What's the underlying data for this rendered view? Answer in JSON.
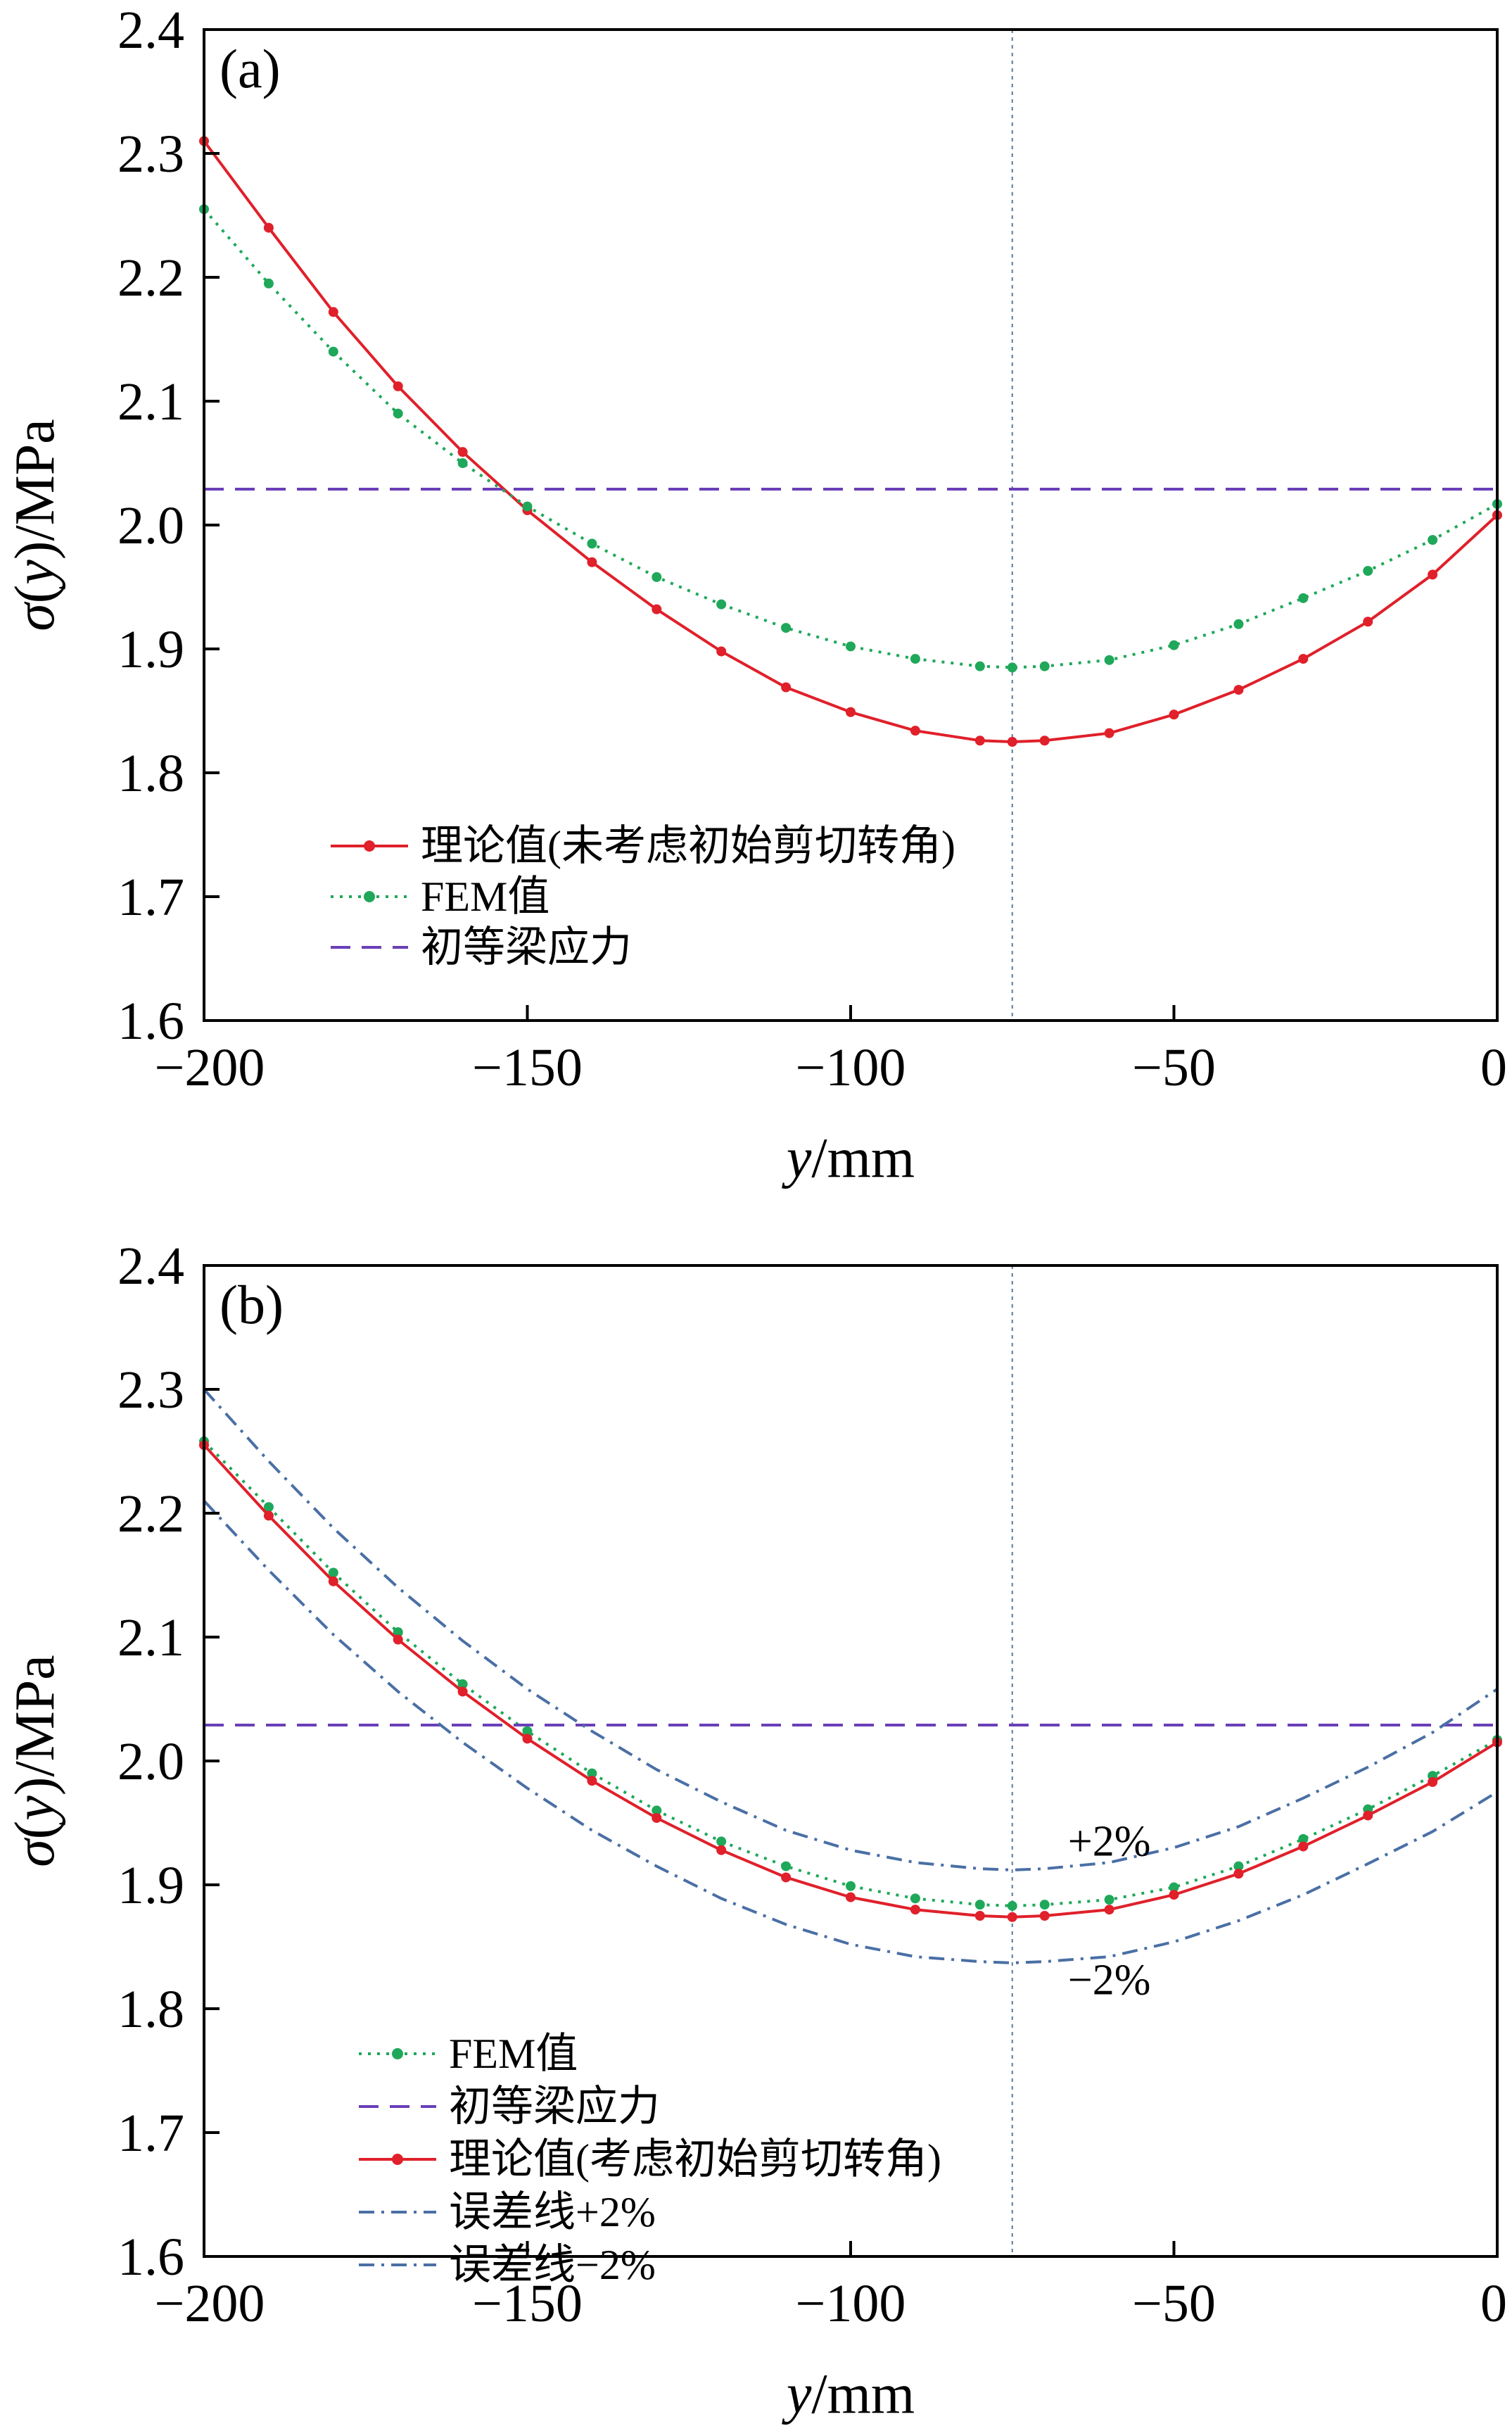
{
  "chart_data": [
    {
      "type": "line",
      "panel_label": "(a)",
      "xlabel_var": "y",
      "xlabel_unit": "/mm",
      "ylabel_prefix": "σ(",
      "ylabel_var": "y",
      "ylabel_suffix": ")/MPa",
      "xlim": [
        -200,
        0
      ],
      "ylim": [
        1.6,
        2.4
      ],
      "x_ticks": [
        -200,
        -150,
        -100,
        -50,
        0
      ],
      "x_tick_labels": [
        "−200",
        "−150",
        "−100",
        "−50",
        "0"
      ],
      "y_ticks": [
        1.6,
        1.7,
        1.8,
        1.9,
        2.0,
        2.1,
        2.2,
        2.3,
        2.4
      ],
      "y_tick_labels": [
        "1.6",
        "1.7",
        "1.8",
        "1.9",
        "2.0",
        "2.1",
        "2.2",
        "2.3",
        "2.4"
      ],
      "grid": false,
      "vline_x": -75,
      "legend_position": "lower-left",
      "series": [
        {
          "name": "理论值(未考虑初始剪切转角)",
          "color": "#e0202a",
          "style": "solid",
          "markers": true,
          "x": [
            -200,
            -190,
            -180,
            -170,
            -160,
            -150,
            -140,
            -130,
            -120,
            -110,
            -100,
            -90,
            -80,
            -75,
            -70,
            -60,
            -50,
            -40,
            -30,
            -20,
            -10,
            0
          ],
          "values": [
            2.31,
            2.24,
            2.172,
            2.112,
            2.059,
            2.012,
            1.97,
            1.932,
            1.898,
            1.869,
            1.849,
            1.834,
            1.826,
            1.825,
            1.826,
            1.832,
            1.847,
            1.867,
            1.892,
            1.922,
            1.96,
            2.008
          ]
        },
        {
          "name": "FEM值",
          "color": "#1fa85a",
          "style": "dotted",
          "markers": true,
          "x": [
            -200,
            -190,
            -180,
            -170,
            -160,
            -150,
            -140,
            -130,
            -120,
            -110,
            -100,
            -90,
            -80,
            -75,
            -70,
            -60,
            -50,
            -40,
            -30,
            -20,
            -10,
            0
          ],
          "values": [
            2.255,
            2.195,
            2.14,
            2.09,
            2.05,
            2.015,
            1.985,
            1.958,
            1.936,
            1.917,
            1.902,
            1.892,
            1.886,
            1.885,
            1.886,
            1.891,
            1.903,
            1.92,
            1.941,
            1.963,
            1.988,
            2.017
          ]
        },
        {
          "name": "初等梁应力",
          "color": "#6a3fb8",
          "style": "dashed",
          "markers": false,
          "x": [
            -200,
            0
          ],
          "values": [
            2.029,
            2.029
          ]
        }
      ]
    },
    {
      "type": "line",
      "panel_label": "(b)",
      "xlabel_var": "y",
      "xlabel_unit": "/mm",
      "ylabel_prefix": "σ(",
      "ylabel_var": "y",
      "ylabel_suffix": ")/MPa",
      "xlim": [
        -200,
        0
      ],
      "ylim": [
        1.6,
        2.4
      ],
      "x_ticks": [
        -200,
        -150,
        -100,
        -50,
        0
      ],
      "x_tick_labels": [
        "−200",
        "−150",
        "−100",
        "−50",
        "0"
      ],
      "y_ticks": [
        1.6,
        1.7,
        1.8,
        1.9,
        2.0,
        2.1,
        2.2,
        2.3,
        2.4
      ],
      "y_tick_labels": [
        "1.6",
        "1.7",
        "1.8",
        "1.9",
        "2.0",
        "2.1",
        "2.2",
        "2.3",
        "2.4"
      ],
      "grid": false,
      "vline_x": -75,
      "legend_position": "lower-left",
      "annotations": [
        {
          "text": "+2%",
          "x": -60,
          "y": 1.935
        },
        {
          "text": "−2%",
          "x": -60,
          "y": 1.823
        }
      ],
      "series": [
        {
          "name": "FEM值",
          "color": "#1fa85a",
          "style": "dotted",
          "markers": true,
          "x": [
            -200,
            -190,
            -180,
            -170,
            -160,
            -150,
            -140,
            -130,
            -120,
            -110,
            -100,
            -90,
            -80,
            -75,
            -70,
            -60,
            -50,
            -40,
            -30,
            -20,
            -10,
            0
          ],
          "values": [
            2.258,
            2.205,
            2.152,
            2.104,
            2.062,
            2.024,
            1.99,
            1.96,
            1.935,
            1.915,
            1.899,
            1.889,
            1.884,
            1.883,
            1.884,
            1.888,
            1.898,
            1.915,
            1.937,
            1.961,
            1.988,
            2.017
          ]
        },
        {
          "name": "初等梁应力",
          "color": "#6a3fb8",
          "style": "dashed",
          "markers": false,
          "x": [
            -200,
            0
          ],
          "values": [
            2.029,
            2.029
          ]
        },
        {
          "name": "理论值(考虑初始剪切转角)",
          "color": "#e0202a",
          "style": "solid",
          "markers": true,
          "x": [
            -200,
            -190,
            -180,
            -170,
            -160,
            -150,
            -140,
            -130,
            -120,
            -110,
            -100,
            -90,
            -80,
            -75,
            -70,
            -60,
            -50,
            -40,
            -30,
            -20,
            -10,
            0
          ],
          "values": [
            2.255,
            2.198,
            2.145,
            2.098,
            2.056,
            2.018,
            1.984,
            1.954,
            1.928,
            1.906,
            1.89,
            1.88,
            1.875,
            1.874,
            1.875,
            1.88,
            1.892,
            1.909,
            1.931,
            1.956,
            1.983,
            2.015
          ]
        },
        {
          "name": "误差线+2%",
          "color": "#4a6fa5",
          "style": "dashdot",
          "markers": false,
          "x": [
            -200,
            -190,
            -180,
            -170,
            -160,
            -150,
            -140,
            -130,
            -120,
            -110,
            -100,
            -90,
            -80,
            -75,
            -70,
            -60,
            -50,
            -40,
            -30,
            -20,
            -10,
            0
          ],
          "values": [
            2.3,
            2.242,
            2.188,
            2.14,
            2.097,
            2.058,
            2.024,
            1.993,
            1.967,
            1.944,
            1.928,
            1.918,
            1.913,
            1.912,
            1.913,
            1.918,
            1.93,
            1.947,
            1.97,
            1.995,
            2.023,
            2.058
          ]
        },
        {
          "name": "误差线−2%",
          "color": "#4a6fa5",
          "style": "dashdot",
          "markers": false,
          "x": [
            -200,
            -190,
            -180,
            -170,
            -160,
            -150,
            -140,
            -130,
            -120,
            -110,
            -100,
            -90,
            -80,
            -75,
            -70,
            -60,
            -50,
            -40,
            -30,
            -20,
            -10,
            0
          ],
          "values": [
            2.21,
            2.154,
            2.102,
            2.056,
            2.015,
            1.978,
            1.944,
            1.915,
            1.889,
            1.868,
            1.852,
            1.842,
            1.838,
            1.837,
            1.838,
            1.842,
            1.854,
            1.871,
            1.892,
            1.917,
            1.943,
            1.975
          ]
        }
      ]
    }
  ]
}
